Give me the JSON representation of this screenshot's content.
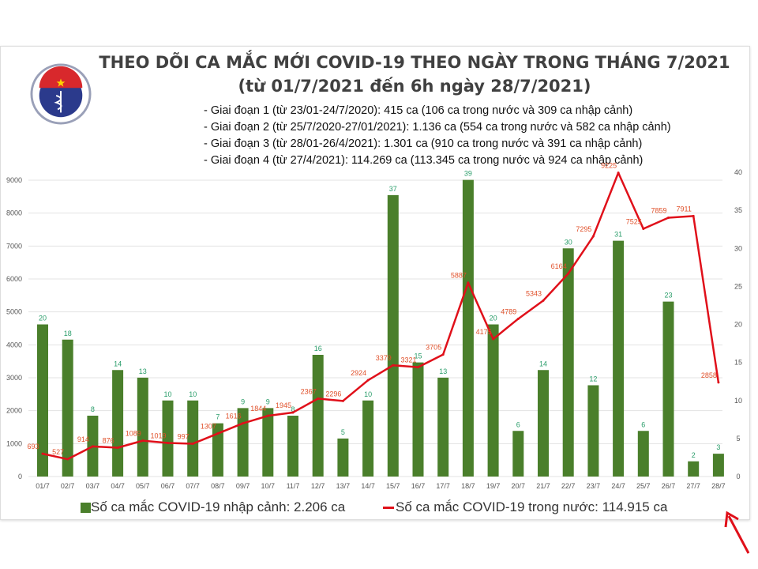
{
  "header": {
    "logo_text": "BỘ Y TẾ - MINISTRY OF HEALTH",
    "title_line1": "THEO DÕI CA MẮC MỚI COVID-19 THEO NGÀY TRONG THÁNG 7/2021",
    "title_line2": "(từ 01/7/2021 đến 6h ngày 28/7/2021)",
    "phases": [
      "- Giai đoạn 1 (từ 23/01-24/7/2020): 415 ca (106 ca trong nước và 309 ca nhập cảnh)",
      "- Giai đoạn 2 (từ 25/7/2020-27/01/2021): 1.136 ca (554 ca trong nước và 582 ca nhập cảnh)",
      "- Giai đoạn 3 (từ 28/01-26/4/2021): 1.301 ca (910 ca trong nước và 391 ca nhập cảnh)",
      "- Giai đoạn 4 (từ 27/4/2021): 114.269 ca (113.345 ca trong nước và 924 ca nhập cảnh)"
    ]
  },
  "chart_data": {
    "type": "bar+line",
    "title": "THEO DÕI CA MẮC MỚI COVID-19 THEO NGÀY TRONG THÁNG 7/2021",
    "categories": [
      "01/7",
      "02/7",
      "03/7",
      "04/7",
      "05/7",
      "06/7",
      "07/7",
      "08/7",
      "09/7",
      "10/7",
      "11/7",
      "12/7",
      "13/7",
      "14/7",
      "15/7",
      "16/7",
      "17/7",
      "18/7",
      "19/7",
      "20/7",
      "21/7",
      "22/7",
      "23/7",
      "24/7",
      "25/7",
      "26/7",
      "27/7",
      "28/7"
    ],
    "series": [
      {
        "name": "Số ca mắc COVID-19 nhập cảnh: 2.206 ca",
        "type": "bar",
        "axis": "right",
        "color": "#4a7f2b",
        "label_color": "#2a9d6a",
        "values": [
          20,
          18,
          8,
          14,
          13,
          10,
          10,
          7,
          9,
          9,
          8,
          16,
          5,
          10,
          37,
          15,
          13,
          39,
          20,
          6,
          14,
          30,
          12,
          31,
          6,
          23,
          2,
          3
        ]
      },
      {
        "name": "Số ca mắc COVID-19 trong nước: 114.915 ca",
        "type": "line",
        "axis": "left",
        "color": "#e0101a",
        "label_color": "#e0502a",
        "values": [
          693,
          527,
          914,
          876,
          1089,
          1019,
          997,
          1307,
          1616,
          1844,
          1945,
          2367,
          2296,
          2924,
          3379,
          3321,
          3705,
          5887,
          4175,
          4789,
          5343,
          6164,
          7295,
          9225,
          7525,
          7859,
          7911,
          2858
        ]
      }
    ],
    "left_axis": {
      "ticks": [
        0,
        1000,
        2000,
        3000,
        4000,
        5000,
        6000,
        7000,
        8000,
        9000
      ],
      "ylim": [
        0,
        9240
      ]
    },
    "right_axis": {
      "ticks": [
        0,
        5,
        10,
        15,
        20,
        25,
        30,
        35,
        40
      ],
      "ylim": [
        0,
        40
      ]
    },
    "grid": true,
    "legend": "bottom"
  }
}
